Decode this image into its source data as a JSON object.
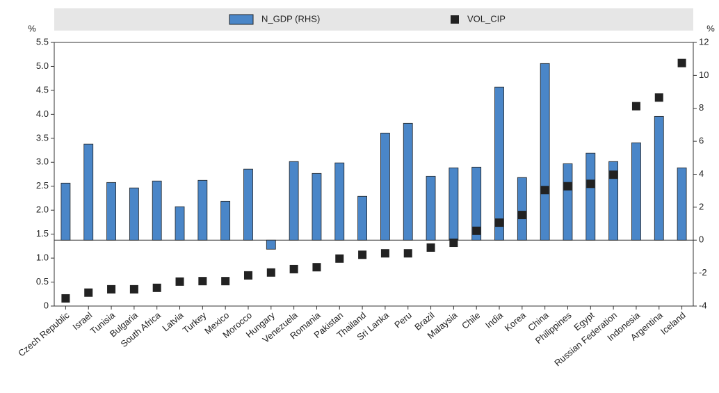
{
  "chart_data": {
    "type": "bar-scatter",
    "y_unit": "%",
    "y2_unit": "%",
    "categories": [
      "Czech Republic",
      "Israel",
      "Tunisia",
      "Bulgaria",
      "South Africa",
      "Latvia",
      "Turkey",
      "Mexico",
      "Morocco",
      "Hungary",
      "Venezuela",
      "Romania",
      "Pakistan",
      "Thailand",
      "Sri Lanka",
      "Peru",
      "Brazil",
      "Malaysia",
      "Chile",
      "India",
      "Korea",
      "China",
      "Philippines",
      "Egypt",
      "Russian Federation",
      "Indonesia",
      "Argentina",
      "Iceland"
    ],
    "series": [
      {
        "name": "N_GDP (RHS)",
        "color": "#4a86c8",
        "axis": "y2",
        "kind": "bar",
        "values": [
          3.46,
          5.83,
          3.5,
          3.17,
          3.59,
          2.03,
          3.63,
          2.36,
          4.31,
          -0.55,
          4.77,
          4.05,
          4.69,
          2.66,
          6.5,
          7.09,
          3.88,
          4.39,
          4.43,
          9.29,
          3.8,
          10.72,
          4.64,
          5.28,
          4.77,
          5.91,
          7.51,
          4.39
        ]
      },
      {
        "name": "VOL_CIP",
        "color": "#222222",
        "kind": "marker",
        "values": [
          0.16,
          0.28,
          0.35,
          0.35,
          0.38,
          0.51,
          0.52,
          0.52,
          0.64,
          0.7,
          0.77,
          0.81,
          0.99,
          1.07,
          1.1,
          1.1,
          1.22,
          1.32,
          1.57,
          1.74,
          1.9,
          2.42,
          2.5,
          2.55,
          2.74,
          4.17,
          4.35,
          5.07
        ]
      }
    ],
    "ylim": [
      0,
      5.5
    ],
    "yticks": [
      0,
      0.5,
      {
        "value": 1,
        "label": "1.0"
      },
      1.5,
      {
        "value": 2,
        "label": "2.0"
      },
      2.5,
      {
        "value": 3,
        "label": "3.0"
      },
      3.5,
      {
        "value": 4,
        "label": "4.0"
      },
      4.5,
      {
        "value": 5,
        "label": "5.0"
      },
      5.5
    ],
    "y2lim": [
      -4,
      12
    ],
    "y2ticks": [
      -4,
      -2,
      0,
      2,
      4,
      6,
      8,
      10,
      12
    ]
  }
}
